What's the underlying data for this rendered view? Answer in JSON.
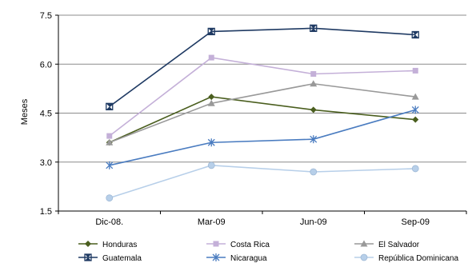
{
  "chart_data": {
    "type": "line",
    "title": "",
    "xlabel": "",
    "ylabel": "Meses",
    "categories": [
      "Dic-08.",
      "Mar-09",
      "Jun-09",
      "Sep-09"
    ],
    "ylim": [
      1.5,
      7.5
    ],
    "yticks": [
      "1.5",
      "3.0",
      "4.5",
      "6.0",
      "7.5"
    ],
    "grid": "horizontal",
    "legend_position": "bottom",
    "series": [
      {
        "name": "Honduras",
        "values": [
          3.6,
          5.0,
          4.6,
          4.3
        ],
        "color": "#4a5e1e",
        "marker": "diamond"
      },
      {
        "name": "Costa Rica",
        "values": [
          3.8,
          6.2,
          5.7,
          5.8
        ],
        "color": "#c4b0d8",
        "marker": "square"
      },
      {
        "name": "El Salvador",
        "values": [
          3.6,
          4.8,
          5.4,
          5.0
        ],
        "color": "#999999",
        "marker": "triangle"
      },
      {
        "name": "Guatemala",
        "values": [
          4.7,
          7.0,
          7.1,
          6.9
        ],
        "color": "#1f3a63",
        "marker": "hourglass"
      },
      {
        "name": "Nicaragua",
        "values": [
          2.9,
          3.6,
          3.7,
          4.6
        ],
        "color": "#4a7cc0",
        "marker": "star"
      },
      {
        "name": "República Dominicana",
        "values": [
          1.9,
          2.9,
          2.7,
          2.8
        ],
        "color": "#b7cfe9",
        "marker": "circle"
      }
    ]
  }
}
